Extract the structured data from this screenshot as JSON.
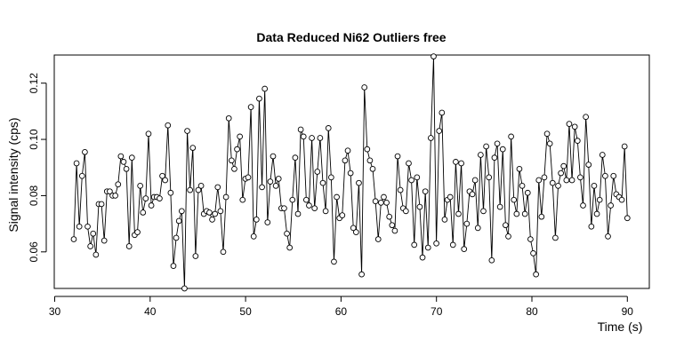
{
  "chart_data": {
    "type": "line",
    "title": "Data Reduced Ni62 Outliers free",
    "xlabel": "Time (s)",
    "ylabel": "Signal intensity (cps)",
    "xlim": [
      32,
      90
    ],
    "ylim": [
      0.047,
      0.13
    ],
    "x_ticks": [
      30,
      40,
      50,
      60,
      70,
      80,
      90
    ],
    "y_ticks": [
      0.06,
      0.08,
      0.1,
      0.12
    ],
    "y_tick_labels": [
      "0.06",
      "0.08",
      "0.10",
      "0.12"
    ],
    "grid": false,
    "markers": "open-circle",
    "series": [
      {
        "x_start": 32,
        "x_end": 90,
        "values": [
          0.0645,
          0.0915,
          0.069,
          0.087,
          0.0955,
          0.069,
          0.062,
          0.0665,
          0.059,
          0.077,
          0.077,
          0.064,
          0.0815,
          0.0815,
          0.08,
          0.08,
          0.084,
          0.094,
          0.092,
          0.0895,
          0.062,
          0.0935,
          0.066,
          0.067,
          0.0835,
          0.074,
          0.079,
          0.102,
          0.0765,
          0.0795,
          0.0795,
          0.079,
          0.087,
          0.0855,
          0.105,
          0.081,
          0.055,
          0.065,
          0.071,
          0.0745,
          0.047,
          0.103,
          0.082,
          0.097,
          0.0585,
          0.082,
          0.0835,
          0.0735,
          0.0745,
          0.074,
          0.0715,
          0.0735,
          0.083,
          0.0745,
          0.06,
          0.0795,
          0.1075,
          0.0925,
          0.0895,
          0.0965,
          0.101,
          0.0785,
          0.086,
          0.0865,
          0.1115,
          0.0655,
          0.0715,
          0.1145,
          0.083,
          0.118,
          0.0705,
          0.085,
          0.094,
          0.0835,
          0.086,
          0.0755,
          0.0755,
          0.0665,
          0.0615,
          0.0785,
          0.0935,
          0.0735,
          0.1035,
          0.101,
          0.0785,
          0.0765,
          0.1005,
          0.0755,
          0.0885,
          0.1005,
          0.0845,
          0.0745,
          0.104,
          0.0865,
          0.0565,
          0.0795,
          0.072,
          0.073,
          0.0925,
          0.096,
          0.088,
          0.0685,
          0.067,
          0.0845,
          0.052,
          0.1185,
          0.0965,
          0.0925,
          0.0895,
          0.078,
          0.0645,
          0.0775,
          0.0795,
          0.0775,
          0.0725,
          0.0695,
          0.0675,
          0.094,
          0.082,
          0.0755,
          0.0745,
          0.0915,
          0.0855,
          0.0625,
          0.0865,
          0.076,
          0.058,
          0.0815,
          0.0615,
          0.1005,
          0.1295,
          0.063,
          0.103,
          0.1095,
          0.0715,
          0.0785,
          0.0795,
          0.0625,
          0.092,
          0.0735,
          0.0915,
          0.061,
          0.07,
          0.0815,
          0.0805,
          0.0855,
          0.0685,
          0.0945,
          0.0745,
          0.0975,
          0.0865,
          0.057,
          0.0935,
          0.0985,
          0.076,
          0.0965,
          0.0695,
          0.0655,
          0.101,
          0.0785,
          0.0735,
          0.0895,
          0.0835,
          0.0735,
          0.081,
          0.0645,
          0.0595,
          0.052,
          0.0855,
          0.0725,
          0.0865,
          0.102,
          0.0985,
          0.0845,
          0.065,
          0.0835,
          0.088,
          0.0905,
          0.0855,
          0.1055,
          0.0855,
          0.1045,
          0.0995,
          0.0865,
          0.0765,
          0.108,
          0.091,
          0.069,
          0.0835,
          0.0735,
          0.0785,
          0.0945,
          0.087,
          0.0655,
          0.0765,
          0.087,
          0.0805,
          0.0795,
          0.0785,
          0.0975,
          0.072
        ]
      }
    ]
  }
}
